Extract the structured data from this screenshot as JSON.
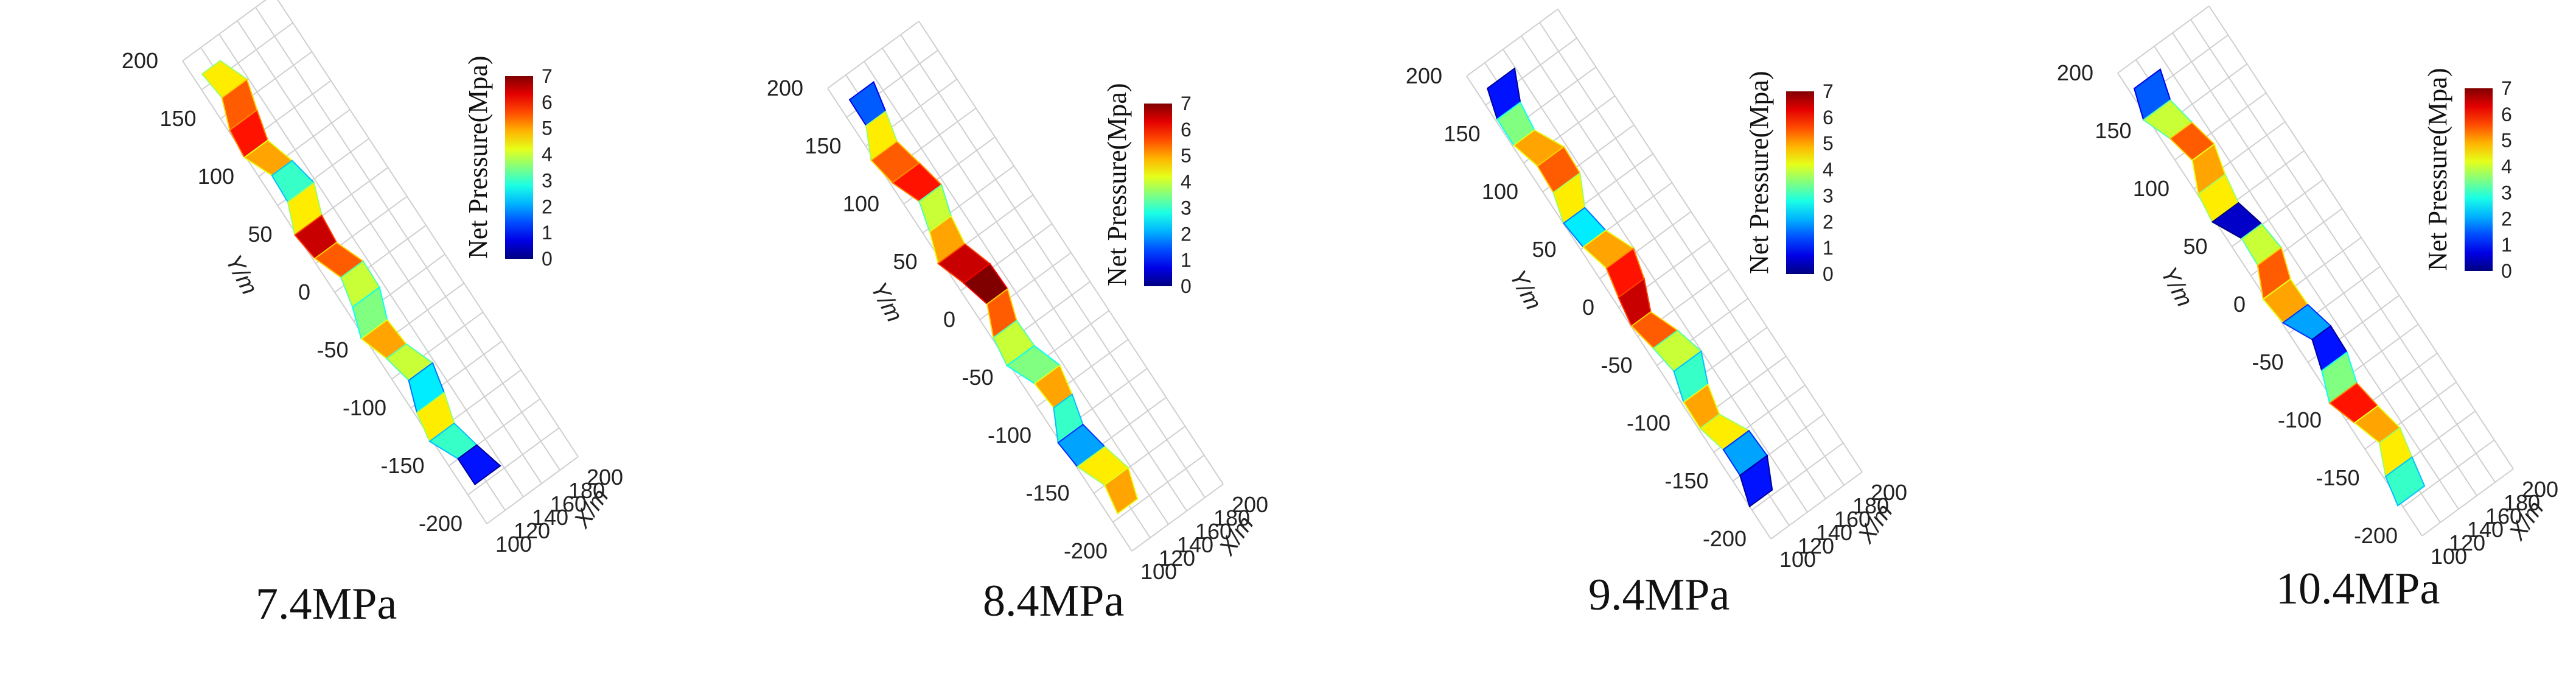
{
  "chart_data": [
    {
      "type": "heatmap",
      "caption": "7.4MPa",
      "colorbar": {
        "title": "Net Pressure(Mpa)",
        "ticks": [
          "0",
          "1",
          "2",
          "3",
          "4",
          "5",
          "6",
          "7"
        ],
        "range": [
          0,
          7
        ]
      },
      "y_axis": {
        "label": "Y/m",
        "ticks": [
          "200",
          "150",
          "100",
          "50",
          "0",
          "-50",
          "-100",
          "-150",
          "-200"
        ]
      },
      "x_axis": {
        "label": "X/m",
        "ticks": [
          "100",
          "120",
          "140",
          "160",
          "180",
          "200"
        ]
      },
      "fracture_profile": [
        4.5,
        5.5,
        6,
        5,
        3,
        4.5,
        6.5,
        5.5,
        4,
        3.5,
        5,
        4,
        2.5,
        4.5,
        3,
        1
      ]
    },
    {
      "type": "heatmap",
      "caption": "8.4MPa",
      "colorbar": {
        "title": "Net Pressure(Mpa)",
        "ticks": [
          "0",
          "1",
          "2",
          "3",
          "4",
          "5",
          "6",
          "7"
        ],
        "range": [
          0,
          7
        ]
      },
      "y_axis": {
        "label": "Y/m",
        "ticks": [
          "200",
          "150",
          "100",
          "50",
          "0",
          "-50",
          "-100",
          "-150",
          "-200"
        ]
      },
      "x_axis": {
        "label": "X/m",
        "ticks": [
          "100",
          "120",
          "140",
          "160",
          "180",
          "200"
        ]
      },
      "fracture_profile": [
        1.5,
        4.5,
        5.5,
        6,
        4,
        5,
        6.5,
        7,
        5.5,
        4,
        3.5,
        5,
        3,
        2,
        4.5,
        5
      ]
    },
    {
      "type": "heatmap",
      "caption": "9.4MPa",
      "colorbar": {
        "title": "Net Pressure(Mpa)",
        "ticks": [
          "0",
          "1",
          "2",
          "3",
          "4",
          "5",
          "6",
          "7"
        ],
        "range": [
          0,
          7
        ]
      },
      "y_axis": {
        "label": "Y/m",
        "ticks": [
          "200",
          "150",
          "100",
          "50",
          "0",
          "-50",
          "-100",
          "-150",
          "-200"
        ]
      },
      "x_axis": {
        "label": "X/m",
        "ticks": [
          "100",
          "120",
          "140",
          "160",
          "180",
          "200"
        ]
      },
      "fracture_profile": [
        1,
        3.5,
        5,
        5.5,
        4.5,
        2.5,
        5,
        6,
        6.5,
        5.5,
        4,
        3,
        5,
        4.5,
        2,
        1
      ]
    },
    {
      "type": "heatmap",
      "caption": "10.4MPa",
      "colorbar": {
        "title": "Net Pressure(Mpa)",
        "ticks": [
          "0",
          "1",
          "2",
          "3",
          "4",
          "5",
          "6",
          "7"
        ],
        "range": [
          0,
          7
        ]
      },
      "y_axis": {
        "label": "Y/m",
        "ticks": [
          "200",
          "150",
          "100",
          "50",
          "0",
          "-50",
          "-100",
          "-150",
          "-200"
        ]
      },
      "x_axis": {
        "label": "X/m",
        "ticks": [
          "100",
          "120",
          "140",
          "160",
          "180",
          "200"
        ]
      },
      "fracture_profile": [
        1.5,
        4,
        5.5,
        5,
        4.5,
        0.5,
        4,
        5.5,
        5,
        2,
        1,
        3.5,
        6,
        5,
        4.5,
        3
      ]
    }
  ]
}
